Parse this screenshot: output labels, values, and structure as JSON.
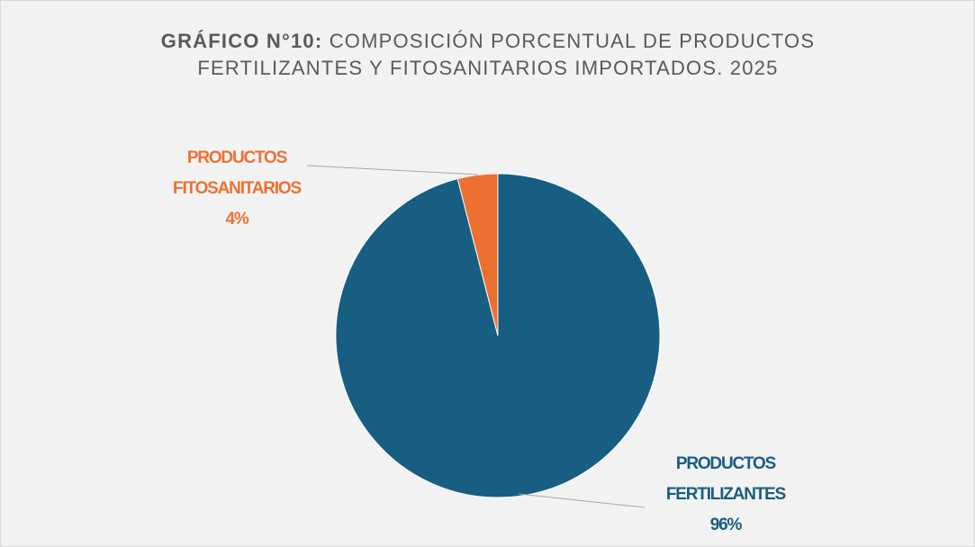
{
  "chart_data": {
    "type": "pie",
    "title_number": "GRÁFICO N°10:",
    "title": "COMPOSICIÓN PORCENTUAL DE PRODUCTOS FERTILIZANTES Y FITOSANITARIOS IMPORTADOS. 2025",
    "categories": [
      "PRODUCTOS FERTILIZANTES",
      "PRODUCTOS FITOSANITARIOS"
    ],
    "values": [
      96,
      4
    ],
    "value_labels": [
      "96%",
      "4%"
    ],
    "colors": [
      "#175e82",
      "#ed7033"
    ]
  }
}
